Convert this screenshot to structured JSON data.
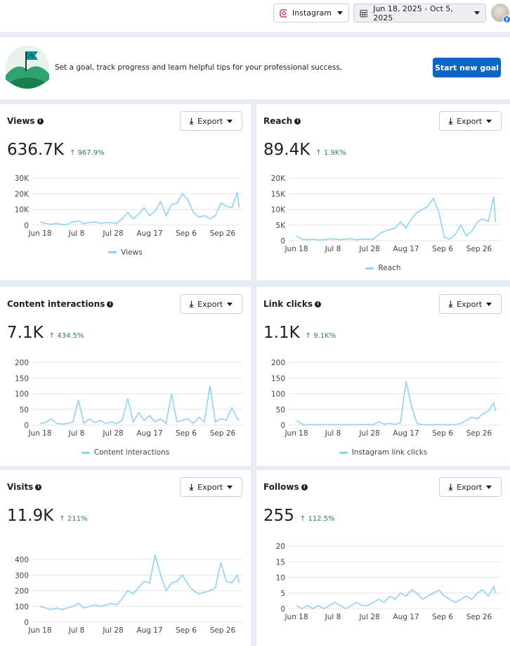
{
  "header": {
    "platform": "Instagram",
    "date_range": "Jun 18, 2025 - Oct 5, 2025",
    "platform_icon": "instagram-icon",
    "date_icon": "calendar-icon"
  },
  "banner": {
    "text": "Set a goal, track progress and learn helpful tips for your professional success.",
    "button": "Start new goal"
  },
  "export_label": "Export",
  "colors": {
    "line": "#8fd3f4",
    "accent": "#0a66c2",
    "positive": "#2e7d5b"
  },
  "x_labels": [
    "Jun 18",
    "Jul 8",
    "Jul 28",
    "Aug 17",
    "Sep 6",
    "Sep 26"
  ],
  "cards": [
    {
      "title": "Views",
      "value": "636.7K",
      "change": "↑ 967.9%",
      "legend": "Views"
    },
    {
      "title": "Reach",
      "value": "89.4K",
      "change": "↑ 1.9K%",
      "legend": "Reach"
    },
    {
      "title": "Content interactions",
      "value": "7.1K",
      "change": "↑ 434.5%",
      "legend": "Content interactions"
    },
    {
      "title": "Link clicks",
      "value": "1.1K",
      "change": "↑ 9.1K%",
      "legend": "Instagram link clicks"
    },
    {
      "title": "Visits",
      "value": "11.9K",
      "change": "↑ 211%",
      "legend": ""
    },
    {
      "title": "Follows",
      "value": "255",
      "change": "↑ 112.5%",
      "legend": ""
    }
  ],
  "chart_data": {
    "type": "line",
    "x": [
      "2025-06-18",
      "2025-06-21",
      "2025-06-24",
      "2025-06-27",
      "2025-06-30",
      "2025-07-03",
      "2025-07-06",
      "2025-07-09",
      "2025-07-12",
      "2025-07-15",
      "2025-07-18",
      "2025-07-21",
      "2025-07-24",
      "2025-07-27",
      "2025-07-30",
      "2025-08-02",
      "2025-08-05",
      "2025-08-08",
      "2025-08-11",
      "2025-08-14",
      "2025-08-17",
      "2025-08-20",
      "2025-08-23",
      "2025-08-26",
      "2025-08-29",
      "2025-09-01",
      "2025-09-04",
      "2025-09-07",
      "2025-09-10",
      "2025-09-13",
      "2025-09-16",
      "2025-09-19",
      "2025-09-22",
      "2025-09-25",
      "2025-09-28",
      "2025-10-01",
      "2025-10-04",
      "2025-10-05"
    ],
    "charts": [
      {
        "name": "Views",
        "yticks": [
          "0",
          "10K",
          "20K",
          "30K"
        ],
        "ylim": [
          0,
          30000
        ],
        "values": [
          2000,
          1000,
          500,
          1000,
          300,
          500,
          2000,
          2500,
          800,
          1500,
          2000,
          1000,
          1500,
          1500,
          1000,
          4000,
          8000,
          4000,
          7000,
          11000,
          6000,
          9000,
          15000,
          6000,
          13000,
          14000,
          20000,
          16000,
          8000,
          5000,
          6000,
          4000,
          6000,
          14000,
          12000,
          11000,
          21000,
          11000
        ]
      },
      {
        "name": "Reach",
        "yticks": [
          "0",
          "5K",
          "10K",
          "15K",
          "20K"
        ],
        "ylim": [
          0,
          20000
        ],
        "values": [
          1500,
          500,
          300,
          500,
          200,
          300,
          600,
          500,
          300,
          500,
          600,
          300,
          500,
          500,
          400,
          2000,
          3000,
          3500,
          4000,
          6000,
          4000,
          7000,
          9000,
          10000,
          11000,
          13500,
          9000,
          1000,
          500,
          2000,
          5000,
          1500,
          3000,
          6000,
          7000,
          6000,
          14000,
          6000
        ]
      },
      {
        "name": "Content interactions",
        "yticks": [
          "0",
          "50",
          "100",
          "150",
          "200"
        ],
        "ylim": [
          0,
          200
        ],
        "values": [
          5,
          8,
          20,
          5,
          3,
          5,
          10,
          80,
          5,
          20,
          8,
          15,
          5,
          10,
          5,
          15,
          85,
          10,
          40,
          15,
          30,
          10,
          20,
          5,
          100,
          10,
          15,
          20,
          5,
          25,
          10,
          125,
          10,
          20,
          15,
          55,
          20,
          15
        ]
      },
      {
        "name": "Instagram link clicks",
        "yticks": [
          "0",
          "50",
          "100",
          "150",
          "200"
        ],
        "ylim": [
          0,
          200
        ],
        "values": [
          15,
          3,
          1,
          1,
          1,
          1,
          1,
          1,
          1,
          1,
          1,
          1,
          1,
          2,
          1,
          10,
          3,
          5,
          2,
          8,
          140,
          60,
          5,
          1,
          1,
          1,
          1,
          1,
          1,
          2,
          5,
          15,
          25,
          20,
          35,
          45,
          70,
          45
        ]
      },
      {
        "name": "Visits",
        "yticks": [
          "0",
          "100",
          "200",
          "300",
          "400"
        ],
        "ylim": [
          0,
          400
        ],
        "values": [
          100,
          90,
          80,
          90,
          80,
          90,
          100,
          120,
          90,
          100,
          110,
          100,
          110,
          120,
          110,
          150,
          200,
          180,
          220,
          260,
          250,
          430,
          300,
          200,
          250,
          260,
          300,
          240,
          200,
          180,
          190,
          200,
          220,
          380,
          260,
          250,
          300,
          250
        ]
      },
      {
        "name": "Follows",
        "yticks": [
          "0",
          "5",
          "10",
          "15",
          "20"
        ],
        "ylim": [
          0,
          20
        ],
        "values": [
          1,
          0,
          1,
          0,
          1,
          0,
          1,
          2,
          1,
          0,
          1,
          2,
          1,
          1,
          2,
          3,
          2,
          4,
          3,
          5,
          4,
          6,
          5,
          3,
          4,
          5,
          6,
          4,
          3,
          2,
          3,
          4,
          3,
          5,
          6,
          4,
          7,
          5
        ]
      }
    ]
  }
}
